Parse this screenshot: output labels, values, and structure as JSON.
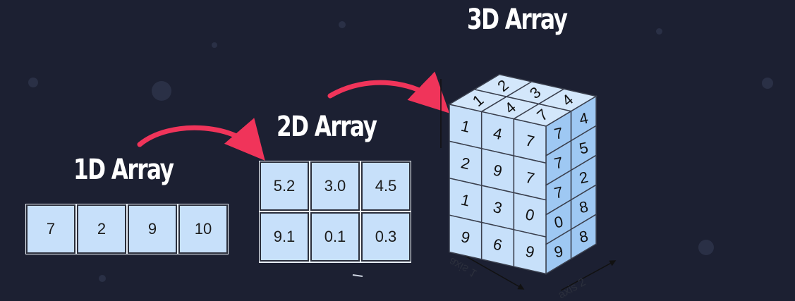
{
  "titles": {
    "one_d": "1D Array",
    "two_d": "2D Array",
    "three_d": "3D Array"
  },
  "array_1d": [
    "7",
    "2",
    "9",
    "10"
  ],
  "array_2d": [
    [
      "5.2",
      "3.0",
      "4.5"
    ],
    [
      "9.1",
      "0.1",
      "0.3"
    ]
  ],
  "array_3d": {
    "front": [
      [
        "1",
        "4",
        "7"
      ],
      [
        "2",
        "9",
        "7"
      ],
      [
        "1",
        "3",
        "0"
      ],
      [
        "9",
        "6",
        "9"
      ]
    ],
    "side": [
      [
        "7",
        "4"
      ],
      [
        "7",
        "5"
      ],
      [
        "7",
        "2"
      ],
      [
        "0",
        "8"
      ],
      [
        "9",
        "8"
      ]
    ],
    "top": [
      "1",
      "2",
      "4",
      "3",
      "7",
      "4"
    ]
  },
  "axis_labels": {
    "axis1": "axis 1",
    "axis2": "axis 2"
  },
  "colors": {
    "arrow": "#f0345a",
    "cell": "#c7e0fa",
    "background": "#1c2032"
  }
}
